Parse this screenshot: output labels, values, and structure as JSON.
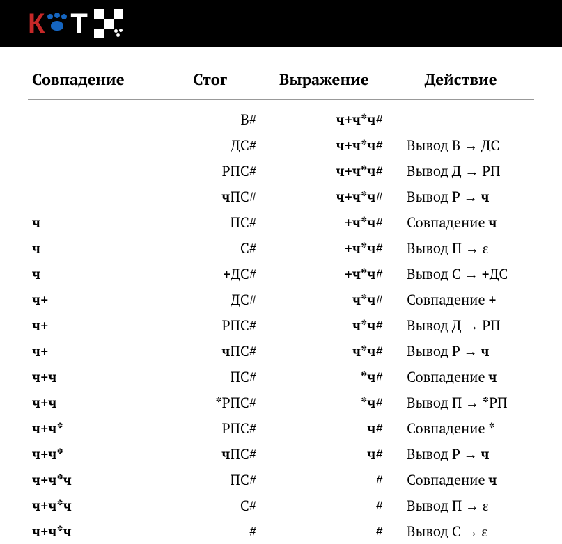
{
  "header": {
    "logo_k": "К",
    "logo_t": "Т"
  },
  "table": {
    "columns": [
      "Совпадение",
      "Стог",
      "Выражение",
      "Действие"
    ],
    "col_align": [
      "left",
      "right",
      "right",
      "left"
    ],
    "header_fontsize": 22,
    "body_fontsize": 20,
    "border_color": "#999999",
    "rows": [
      {
        "match": "",
        "stack": [
          {
            "t": "В#",
            "b": false
          }
        ],
        "expr": [
          {
            "t": "ч+ч*ч",
            "b": true
          },
          {
            "t": "#",
            "b": false
          }
        ],
        "action": []
      },
      {
        "match": "",
        "stack": [
          {
            "t": "ДС#",
            "b": false
          }
        ],
        "expr": [
          {
            "t": "ч+ч*ч",
            "b": true
          },
          {
            "t": "#",
            "b": false
          }
        ],
        "action": [
          {
            "t": "Вывод В → ДС",
            "b": false
          }
        ]
      },
      {
        "match": "",
        "stack": [
          {
            "t": "РПС#",
            "b": false
          }
        ],
        "expr": [
          {
            "t": "ч+ч*ч",
            "b": true
          },
          {
            "t": "#",
            "b": false
          }
        ],
        "action": [
          {
            "t": "Вывод Д → РП",
            "b": false
          }
        ]
      },
      {
        "match": "",
        "stack": [
          {
            "t": "ч",
            "b": true
          },
          {
            "t": "ПС#",
            "b": false
          }
        ],
        "expr": [
          {
            "t": "ч+ч*ч",
            "b": true
          },
          {
            "t": "#",
            "b": false
          }
        ],
        "action": [
          {
            "t": "Вывод Р → ",
            "b": false
          },
          {
            "t": "ч",
            "b": true
          }
        ]
      },
      {
        "match": "ч",
        "stack": [
          {
            "t": "ПС#",
            "b": false
          }
        ],
        "expr": [
          {
            "t": "+ч*ч",
            "b": true
          },
          {
            "t": "#",
            "b": false
          }
        ],
        "action": [
          {
            "t": "Совпадение ",
            "b": false
          },
          {
            "t": "ч",
            "b": true
          }
        ]
      },
      {
        "match": "ч",
        "stack": [
          {
            "t": "С#",
            "b": false
          }
        ],
        "expr": [
          {
            "t": "+ч*ч",
            "b": true
          },
          {
            "t": "#",
            "b": false
          }
        ],
        "action": [
          {
            "t": "Вывод П → ε",
            "b": false
          }
        ]
      },
      {
        "match": "ч",
        "stack": [
          {
            "t": "+",
            "b": true
          },
          {
            "t": "ДС#",
            "b": false
          }
        ],
        "expr": [
          {
            "t": "+ч*ч",
            "b": true
          },
          {
            "t": "#",
            "b": false
          }
        ],
        "action": [
          {
            "t": "Вывод С → ",
            "b": false
          },
          {
            "t": "+",
            "b": true
          },
          {
            "t": "ДС",
            "b": false
          }
        ]
      },
      {
        "match": "ч+",
        "stack": [
          {
            "t": "ДС#",
            "b": false
          }
        ],
        "expr": [
          {
            "t": "ч*ч",
            "b": true
          },
          {
            "t": "#",
            "b": false
          }
        ],
        "action": [
          {
            "t": "Совпадение ",
            "b": false
          },
          {
            "t": "+",
            "b": true
          }
        ]
      },
      {
        "match": "ч+",
        "stack": [
          {
            "t": "РПС#",
            "b": false
          }
        ],
        "expr": [
          {
            "t": "ч*ч",
            "b": true
          },
          {
            "t": "#",
            "b": false
          }
        ],
        "action": [
          {
            "t": "Вывод Д → РП",
            "b": false
          }
        ]
      },
      {
        "match": "ч+",
        "stack": [
          {
            "t": "ч",
            "b": true
          },
          {
            "t": "ПС#",
            "b": false
          }
        ],
        "expr": [
          {
            "t": "ч*ч",
            "b": true
          },
          {
            "t": "#",
            "b": false
          }
        ],
        "action": [
          {
            "t": "Вывод Р → ",
            "b": false
          },
          {
            "t": "ч",
            "b": true
          }
        ]
      },
      {
        "match": "ч+ч",
        "stack": [
          {
            "t": "ПС#",
            "b": false
          }
        ],
        "expr": [
          {
            "t": "*ч",
            "b": true
          },
          {
            "t": "#",
            "b": false
          }
        ],
        "action": [
          {
            "t": "Совпадение ",
            "b": false
          },
          {
            "t": "ч",
            "b": true
          }
        ]
      },
      {
        "match": "ч+ч",
        "stack": [
          {
            "t": "*",
            "b": true
          },
          {
            "t": "РПС#",
            "b": false
          }
        ],
        "expr": [
          {
            "t": "*ч",
            "b": true
          },
          {
            "t": "#",
            "b": false
          }
        ],
        "action": [
          {
            "t": "Вывод П → ",
            "b": false
          },
          {
            "t": "*",
            "b": true
          },
          {
            "t": "РП",
            "b": false
          }
        ]
      },
      {
        "match": "ч+ч*",
        "stack": [
          {
            "t": "РПС#",
            "b": false
          }
        ],
        "expr": [
          {
            "t": "ч",
            "b": true
          },
          {
            "t": "#",
            "b": false
          }
        ],
        "action": [
          {
            "t": "Совпадение ",
            "b": false
          },
          {
            "t": "*",
            "b": true
          }
        ]
      },
      {
        "match": "ч+ч*",
        "stack": [
          {
            "t": "ч",
            "b": true
          },
          {
            "t": "ПС#",
            "b": false
          }
        ],
        "expr": [
          {
            "t": "ч",
            "b": true
          },
          {
            "t": "#",
            "b": false
          }
        ],
        "action": [
          {
            "t": "Вывод Р → ",
            "b": false
          },
          {
            "t": "ч",
            "b": true
          }
        ]
      },
      {
        "match": "ч+ч*ч",
        "stack": [
          {
            "t": "ПС#",
            "b": false
          }
        ],
        "expr": [
          {
            "t": "#",
            "b": false
          }
        ],
        "action": [
          {
            "t": "Совпадение ",
            "b": false
          },
          {
            "t": "ч",
            "b": true
          }
        ]
      },
      {
        "match": "ч+ч*ч",
        "stack": [
          {
            "t": "С#",
            "b": false
          }
        ],
        "expr": [
          {
            "t": "#",
            "b": false
          }
        ],
        "action": [
          {
            "t": "Вывод П → ε",
            "b": false
          }
        ]
      },
      {
        "match": "ч+ч*ч",
        "stack": [
          {
            "t": "#",
            "b": false
          }
        ],
        "expr": [
          {
            "t": "#",
            "b": false
          }
        ],
        "action": [
          {
            "t": "Вывод С → ε",
            "b": false
          }
        ]
      }
    ]
  },
  "colors": {
    "background": "#ffffff",
    "header_bg": "#000000",
    "logo_red": "#c62828",
    "logo_blue": "#1565c0",
    "logo_white": "#ffffff",
    "text": "#000000"
  }
}
